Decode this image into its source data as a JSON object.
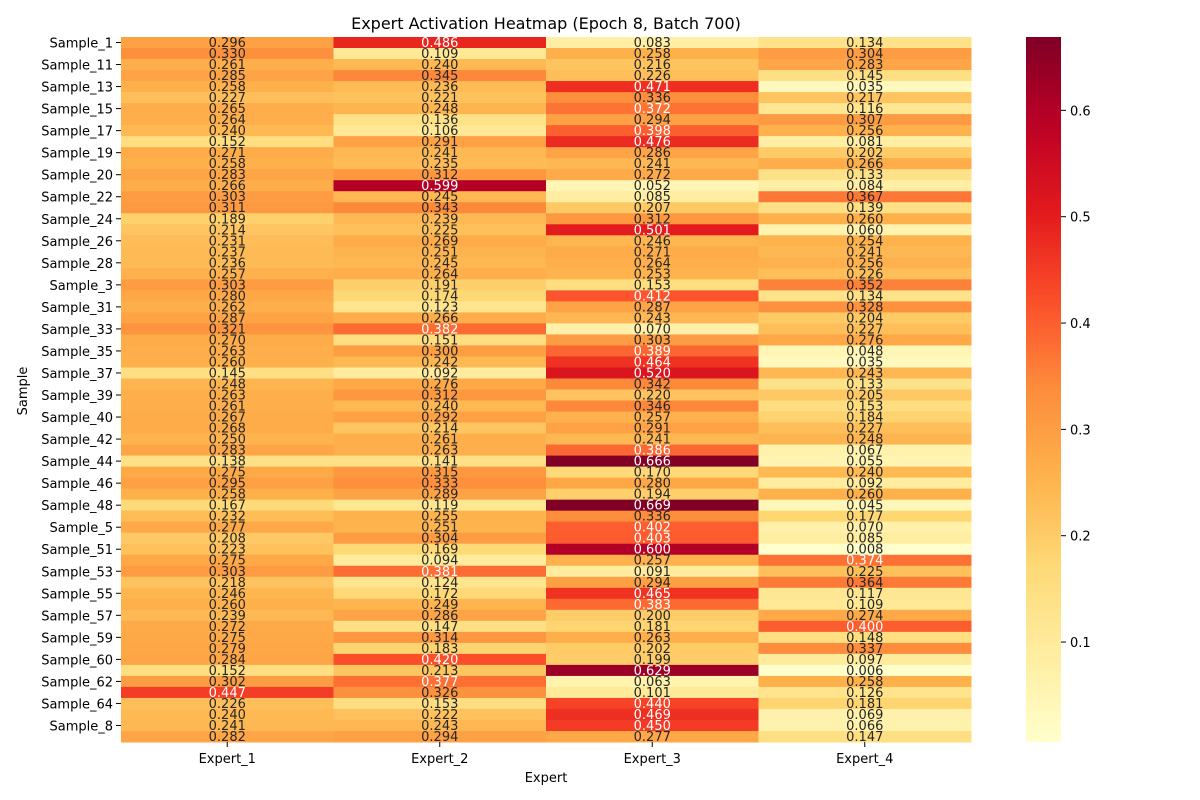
{
  "chart_data": {
    "type": "heatmap",
    "title": "Expert Activation Heatmap (Epoch 8, Batch 700)",
    "xlabel": "Expert",
    "ylabel": "Sample",
    "columns": [
      "Expert_1",
      "Expert_2",
      "Expert_3",
      "Expert_4"
    ],
    "row_tick_labels": [
      "Sample_1",
      "Sample_11",
      "Sample_13",
      "Sample_15",
      "Sample_17",
      "Sample_19",
      "Sample_20",
      "Sample_22",
      "Sample_24",
      "Sample_26",
      "Sample_28",
      "Sample_3",
      "Sample_31",
      "Sample_33",
      "Sample_35",
      "Sample_37",
      "Sample_39",
      "Sample_40",
      "Sample_42",
      "Sample_44",
      "Sample_46",
      "Sample_48",
      "Sample_5",
      "Sample_51",
      "Sample_53",
      "Sample_55",
      "Sample_57",
      "Sample_59",
      "Sample_60",
      "Sample_62",
      "Sample_64",
      "Sample_8"
    ],
    "values": [
      [
        0.296,
        0.486,
        0.083,
        0.134
      ],
      [
        0.33,
        0.109,
        0.258,
        0.304
      ],
      [
        0.261,
        0.24,
        0.216,
        0.283
      ],
      [
        0.285,
        0.345,
        0.226,
        0.145
      ],
      [
        0.258,
        0.236,
        0.471,
        0.035
      ],
      [
        0.227,
        0.221,
        0.336,
        0.217
      ],
      [
        0.265,
        0.248,
        0.372,
        0.116
      ],
      [
        0.264,
        0.136,
        0.294,
        0.307
      ],
      [
        0.24,
        0.106,
        0.398,
        0.256
      ],
      [
        0.152,
        0.291,
        0.476,
        0.081
      ],
      [
        0.271,
        0.241,
        0.286,
        0.202
      ],
      [
        0.258,
        0.235,
        0.241,
        0.266
      ],
      [
        0.283,
        0.312,
        0.272,
        0.133
      ],
      [
        0.266,
        0.599,
        0.052,
        0.084
      ],
      [
        0.303,
        0.245,
        0.085,
        0.367
      ],
      [
        0.311,
        0.343,
        0.207,
        0.139
      ],
      [
        0.189,
        0.239,
        0.312,
        0.26
      ],
      [
        0.214,
        0.225,
        0.501,
        0.06
      ],
      [
        0.231,
        0.269,
        0.246,
        0.254
      ],
      [
        0.237,
        0.251,
        0.271,
        0.241
      ],
      [
        0.236,
        0.245,
        0.264,
        0.256
      ],
      [
        0.257,
        0.264,
        0.253,
        0.226
      ],
      [
        0.303,
        0.191,
        0.153,
        0.352
      ],
      [
        0.28,
        0.174,
        0.412,
        0.134
      ],
      [
        0.262,
        0.123,
        0.287,
        0.328
      ],
      [
        0.287,
        0.266,
        0.243,
        0.204
      ],
      [
        0.321,
        0.382,
        0.07,
        0.227
      ],
      [
        0.27,
        0.151,
        0.303,
        0.276
      ],
      [
        0.263,
        0.3,
        0.389,
        0.048
      ],
      [
        0.26,
        0.242,
        0.464,
        0.035
      ],
      [
        0.145,
        0.092,
        0.52,
        0.243
      ],
      [
        0.248,
        0.276,
        0.342,
        0.133
      ],
      [
        0.263,
        0.312,
        0.22,
        0.205
      ],
      [
        0.261,
        0.24,
        0.346,
        0.153
      ],
      [
        0.267,
        0.292,
        0.257,
        0.184
      ],
      [
        0.268,
        0.214,
        0.291,
        0.227
      ],
      [
        0.25,
        0.261,
        0.241,
        0.248
      ],
      [
        0.283,
        0.263,
        0.386,
        0.067
      ],
      [
        0.138,
        0.141,
        0.666,
        0.055
      ],
      [
        0.275,
        0.315,
        0.17,
        0.24
      ],
      [
        0.295,
        0.333,
        0.28,
        0.092
      ],
      [
        0.258,
        0.289,
        0.194,
        0.26
      ],
      [
        0.167,
        0.119,
        0.669,
        0.045
      ],
      [
        0.232,
        0.255,
        0.336,
        0.177
      ],
      [
        0.277,
        0.251,
        0.402,
        0.07
      ],
      [
        0.208,
        0.304,
        0.403,
        0.085
      ],
      [
        0.223,
        0.169,
        0.6,
        0.008
      ],
      [
        0.275,
        0.094,
        0.257,
        0.374
      ],
      [
        0.303,
        0.381,
        0.091,
        0.225
      ],
      [
        0.218,
        0.124,
        0.294,
        0.364
      ],
      [
        0.246,
        0.172,
        0.465,
        0.117
      ],
      [
        0.26,
        0.249,
        0.383,
        0.109
      ],
      [
        0.239,
        0.286,
        0.2,
        0.274
      ],
      [
        0.272,
        0.147,
        0.181,
        0.4
      ],
      [
        0.275,
        0.314,
        0.263,
        0.148
      ],
      [
        0.279,
        0.183,
        0.202,
        0.337
      ],
      [
        0.284,
        0.42,
        0.199,
        0.097
      ],
      [
        0.152,
        0.213,
        0.629,
        0.006
      ],
      [
        0.302,
        0.377,
        0.063,
        0.258
      ],
      [
        0.447,
        0.326,
        0.101,
        0.126
      ],
      [
        0.226,
        0.153,
        0.44,
        0.181
      ],
      [
        0.24,
        0.222,
        0.469,
        0.069
      ],
      [
        0.241,
        0.243,
        0.45,
        0.066
      ],
      [
        0.282,
        0.294,
        0.277,
        0.147
      ]
    ],
    "colormap": "YlOrRd",
    "colorbar_range": [
      0.006,
      0.669
    ],
    "colorbar_ticks": [
      "0.1",
      "0.2",
      "0.3",
      "0.4",
      "0.5",
      "0.6"
    ],
    "annotate_cells": true,
    "value_format": "3 decimals"
  }
}
